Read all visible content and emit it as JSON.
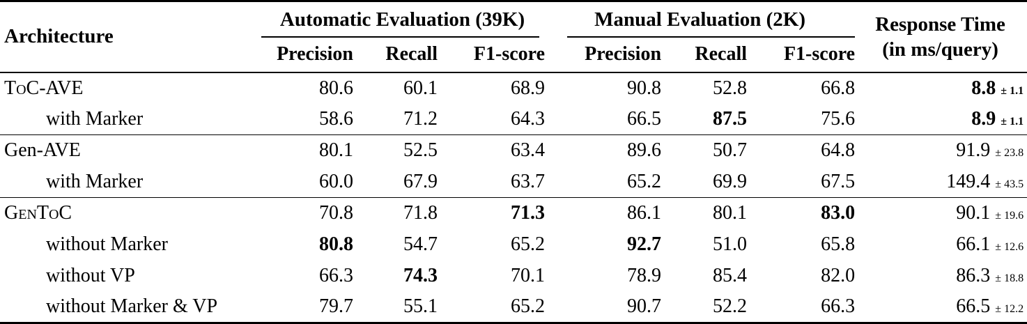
{
  "table": {
    "headers": {
      "architecture": "Architecture",
      "auto_group": "Automatic Evaluation (39K)",
      "manual_group": "Manual Evaluation (2K)",
      "response_time_line1": "Response Time",
      "response_time_line2": "(in ms/query)",
      "metrics": [
        "Precision",
        "Recall",
        "F1-score"
      ]
    },
    "rows": [
      {
        "label": "ToC-AVE",
        "smallcaps": true,
        "indent": false,
        "cells": [
          {
            "v": "80.6"
          },
          {
            "v": "60.1"
          },
          {
            "v": "68.9"
          },
          {
            "v": "90.8"
          },
          {
            "v": "52.8"
          },
          {
            "v": "66.8"
          }
        ],
        "response": {
          "v": "8.8",
          "pm": "± 1.1",
          "bold": true
        }
      },
      {
        "label": "with Marker",
        "smallcaps": false,
        "indent": true,
        "cells": [
          {
            "v": "58.6"
          },
          {
            "v": "71.2"
          },
          {
            "v": "64.3"
          },
          {
            "v": "66.5"
          },
          {
            "v": "87.5",
            "bold": true
          },
          {
            "v": "75.6"
          }
        ],
        "response": {
          "v": "8.9",
          "pm": "± 1.1",
          "bold": true
        }
      },
      {
        "label": "Gen-AVE",
        "smallcaps": false,
        "indent": false,
        "cells": [
          {
            "v": "80.1"
          },
          {
            "v": "52.5"
          },
          {
            "v": "63.4"
          },
          {
            "v": "89.6"
          },
          {
            "v": "50.7"
          },
          {
            "v": "64.8"
          }
        ],
        "response": {
          "v": "91.9",
          "pm": "± 23.8",
          "bold": false
        }
      },
      {
        "label": "with Marker",
        "smallcaps": false,
        "indent": true,
        "cells": [
          {
            "v": "60.0"
          },
          {
            "v": "67.9"
          },
          {
            "v": "63.7"
          },
          {
            "v": "65.2"
          },
          {
            "v": "69.9"
          },
          {
            "v": "67.5"
          }
        ],
        "response": {
          "v": "149.4",
          "pm": "± 43.5",
          "bold": false
        }
      },
      {
        "label": "GenToC",
        "smallcaps": true,
        "indent": false,
        "cells": [
          {
            "v": "70.8"
          },
          {
            "v": "71.8"
          },
          {
            "v": "71.3",
            "bold": true
          },
          {
            "v": "86.1"
          },
          {
            "v": "80.1"
          },
          {
            "v": "83.0",
            "bold": true
          }
        ],
        "response": {
          "v": "90.1",
          "pm": "± 19.6",
          "bold": false
        }
      },
      {
        "label": "without Marker",
        "smallcaps": false,
        "indent": true,
        "cells": [
          {
            "v": "80.8",
            "bold": true
          },
          {
            "v": "54.7"
          },
          {
            "v": "65.2"
          },
          {
            "v": "92.7",
            "bold": true
          },
          {
            "v": "51.0"
          },
          {
            "v": "65.8"
          }
        ],
        "response": {
          "v": "66.1",
          "pm": "± 12.6",
          "bold": false
        }
      },
      {
        "label": "without VP",
        "smallcaps": false,
        "indent": true,
        "cells": [
          {
            "v": "66.3"
          },
          {
            "v": "74.3",
            "bold": true
          },
          {
            "v": "70.1"
          },
          {
            "v": "78.9"
          },
          {
            "v": "85.4"
          },
          {
            "v": "82.0"
          }
        ],
        "response": {
          "v": "86.3",
          "pm": "± 18.8",
          "bold": false
        }
      },
      {
        "label": "without Marker & VP",
        "smallcaps": false,
        "indent": true,
        "cells": [
          {
            "v": "79.7"
          },
          {
            "v": "55.1"
          },
          {
            "v": "65.2"
          },
          {
            "v": "90.7"
          },
          {
            "v": "52.2"
          },
          {
            "v": "66.3"
          }
        ],
        "response": {
          "v": "66.5",
          "pm": "± 12.2",
          "bold": false
        }
      }
    ]
  }
}
